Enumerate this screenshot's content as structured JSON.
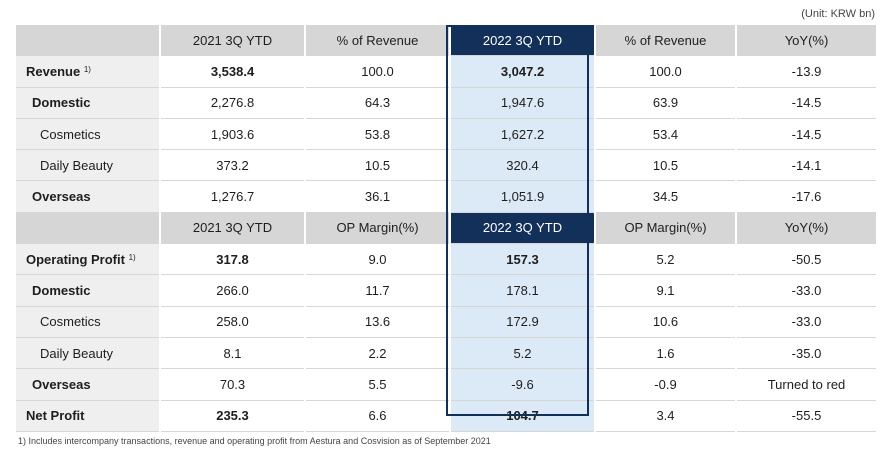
{
  "unit": "(Unit: KRW bn)",
  "footnote": "1) Includes intercompany transactions, revenue and operating profit from Aestura  and Cosvision as of September 2021",
  "revenue_header": [
    "2021 3Q YTD",
    "% of Revenue",
    "2022 3Q YTD",
    "% of Revenue",
    "YoY(%)"
  ],
  "revenue_rows": [
    {
      "label": "Revenue",
      "sup": "1)",
      "values": [
        "3,538.4",
        "100.0",
        "3,047.2",
        "100.0",
        "-13.9"
      ]
    },
    {
      "label": "Domestic",
      "values": [
        "2,276.8",
        "64.3",
        "1,947.6",
        "63.9",
        "-14.5"
      ]
    },
    {
      "label": "Cosmetics",
      "values": [
        "1,903.6",
        "53.8",
        "1,627.2",
        "53.4",
        "-14.5"
      ]
    },
    {
      "label": "Daily Beauty",
      "values": [
        "373.2",
        "10.5",
        "320.4",
        "10.5",
        "-14.1"
      ]
    },
    {
      "label": "Overseas",
      "values": [
        "1,276.7",
        "36.1",
        "1,051.9",
        "34.5",
        "-17.6"
      ]
    }
  ],
  "op_header": [
    "2021 3Q YTD",
    "OP Margin(%)",
    "2022 3Q YTD",
    "OP Margin(%)",
    "YoY(%)"
  ],
  "op_rows": [
    {
      "label": "Operating Profit",
      "sup": "1)",
      "values": [
        "317.8",
        "9.0",
        "157.3",
        "5.2",
        "-50.5"
      ]
    },
    {
      "label": "Domestic",
      "values": [
        "266.0",
        "11.7",
        "178.1",
        "9.1",
        "-33.0"
      ]
    },
    {
      "label": "Cosmetics",
      "values": [
        "258.0",
        "13.6",
        "172.9",
        "10.6",
        "-33.0"
      ]
    },
    {
      "label": "Daily Beauty",
      "values": [
        "8.1",
        "2.2",
        "5.2",
        "1.6",
        "-35.0"
      ]
    },
    {
      "label": "Overseas",
      "values": [
        "70.3",
        "5.5",
        "-9.6",
        "-0.9",
        "Turned to red"
      ]
    },
    {
      "label": "Net Profit",
      "values": [
        "235.3",
        "6.6",
        "104.7",
        "3.4",
        "-55.5"
      ]
    }
  ]
}
